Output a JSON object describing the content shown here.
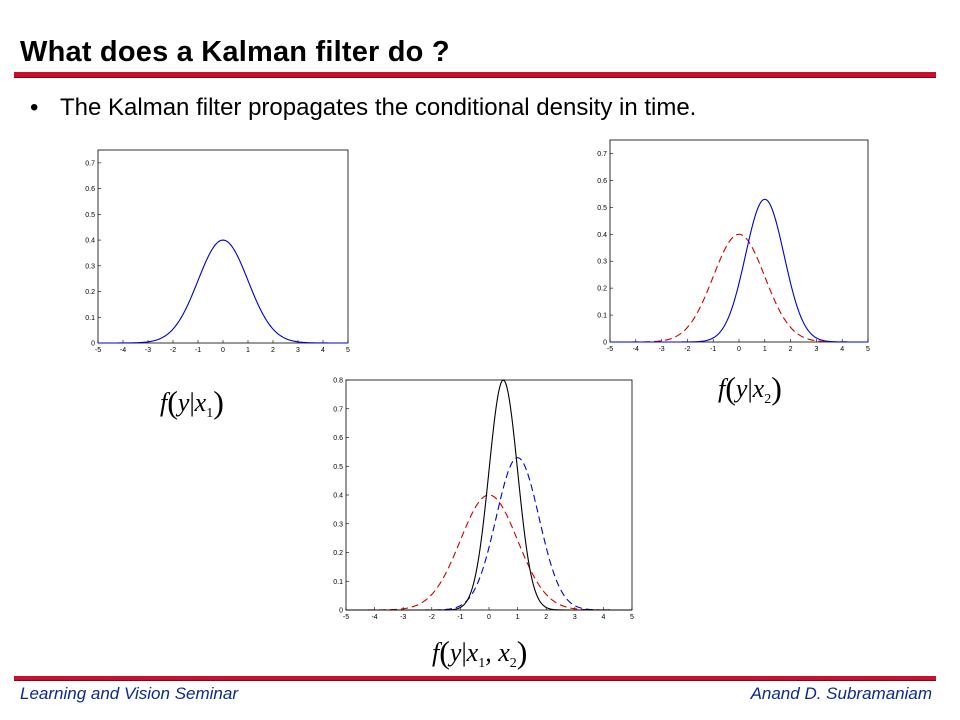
{
  "slide": {
    "title": "What does a Kalman filter do ?",
    "bullet_marker": "•",
    "bullet": "The Kalman filter propagates the conditional density in time."
  },
  "formulas": {
    "f1": {
      "func": "f",
      "var": "y",
      "given": "x",
      "sub": "1"
    },
    "f2": {
      "func": "f",
      "var": "y",
      "given": "x",
      "sub": "2"
    },
    "f3": {
      "func": "f",
      "var": "y",
      "given": "x",
      "sub": "1",
      "sep": ", ",
      "given2": "x",
      "sub2": "2"
    }
  },
  "footer": {
    "left": "Learning and Vision Seminar",
    "right": "Anand D. Subramaniam"
  },
  "colors": {
    "accent": "#c8102e",
    "footer_text": "#0b2a8a",
    "blue": "#0000cc",
    "red": "#cc0000",
    "black": "#000000"
  },
  "chart_data": [
    {
      "type": "line",
      "xlim": [
        -5,
        5
      ],
      "ylim": [
        0,
        0.75
      ],
      "xticks": [
        -5,
        -4,
        -3,
        -2,
        -1,
        0,
        1,
        2,
        3,
        4,
        5
      ],
      "yticks": [
        0,
        0.1,
        0.2,
        0.3,
        0.4,
        0.5,
        0.6,
        0.7
      ],
      "series": [
        {
          "distribution": "gaussian",
          "mean": 0,
          "sd": 1,
          "peak": 0.4,
          "color": "#0000cc",
          "style": "solid"
        }
      ]
    },
    {
      "type": "line",
      "xlim": [
        -5,
        5
      ],
      "ylim": [
        0,
        0.75
      ],
      "xticks": [
        -5,
        -4,
        -3,
        -2,
        -1,
        0,
        1,
        2,
        3,
        4,
        5
      ],
      "yticks": [
        0,
        0.1,
        0.2,
        0.3,
        0.4,
        0.5,
        0.6,
        0.7
      ],
      "series": [
        {
          "distribution": "gaussian",
          "mean": 0,
          "sd": 1,
          "peak": 0.4,
          "color": "#cc0000",
          "style": "dashed"
        },
        {
          "distribution": "gaussian",
          "mean": 1,
          "sd": 0.75,
          "peak": 0.53,
          "color": "#0000cc",
          "style": "solid"
        }
      ]
    },
    {
      "type": "line",
      "xlim": [
        -5,
        5
      ],
      "ylim": [
        0,
        0.8
      ],
      "xticks": [
        -5,
        -4,
        -3,
        -2,
        -1,
        0,
        1,
        2,
        3,
        4,
        5
      ],
      "yticks": [
        0,
        0.1,
        0.2,
        0.3,
        0.4,
        0.5,
        0.6,
        0.7,
        0.8
      ],
      "series": [
        {
          "distribution": "gaussian",
          "mean": 0,
          "sd": 1,
          "peak": 0.4,
          "color": "#cc0000",
          "style": "dashed"
        },
        {
          "distribution": "gaussian",
          "mean": 1,
          "sd": 0.75,
          "peak": 0.53,
          "color": "#0000cc",
          "style": "dashed"
        },
        {
          "distribution": "gaussian",
          "mean": 0.5,
          "sd": 0.5,
          "peak": 0.8,
          "color": "#000000",
          "style": "solid"
        }
      ]
    }
  ]
}
